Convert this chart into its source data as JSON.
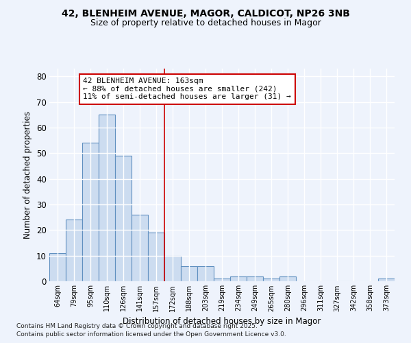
{
  "title1": "42, BLENHEIM AVENUE, MAGOR, CALDICOT, NP26 3NB",
  "title2": "Size of property relative to detached houses in Magor",
  "xlabel": "Distribution of detached houses by size in Magor",
  "ylabel": "Number of detached properties",
  "categories": [
    "64sqm",
    "79sqm",
    "95sqm",
    "110sqm",
    "126sqm",
    "141sqm",
    "157sqm",
    "172sqm",
    "188sqm",
    "203sqm",
    "219sqm",
    "234sqm",
    "249sqm",
    "265sqm",
    "280sqm",
    "296sqm",
    "311sqm",
    "327sqm",
    "342sqm",
    "358sqm",
    "373sqm"
  ],
  "values": [
    11,
    24,
    54,
    65,
    49,
    26,
    19,
    10,
    6,
    6,
    1,
    2,
    2,
    1,
    2,
    0,
    0,
    0,
    0,
    0,
    1
  ],
  "bar_color": "#ccdcf0",
  "bar_edge_color": "#6090c0",
  "background_color": "#eef3fc",
  "grid_color": "#ffffff",
  "vline_x_idx": 7,
  "vline_color": "#cc0000",
  "annotation_text": "42 BLENHEIM AVENUE: 163sqm\n← 88% of detached houses are smaller (242)\n11% of semi-detached houses are larger (31) →",
  "annotation_box_color": "#ffffff",
  "annotation_box_edge": "#cc0000",
  "ylim": [
    0,
    83
  ],
  "yticks": [
    0,
    10,
    20,
    30,
    40,
    50,
    60,
    70,
    80
  ],
  "footer1": "Contains HM Land Registry data © Crown copyright and database right 2025.",
  "footer2": "Contains public sector information licensed under the Open Government Licence v3.0."
}
